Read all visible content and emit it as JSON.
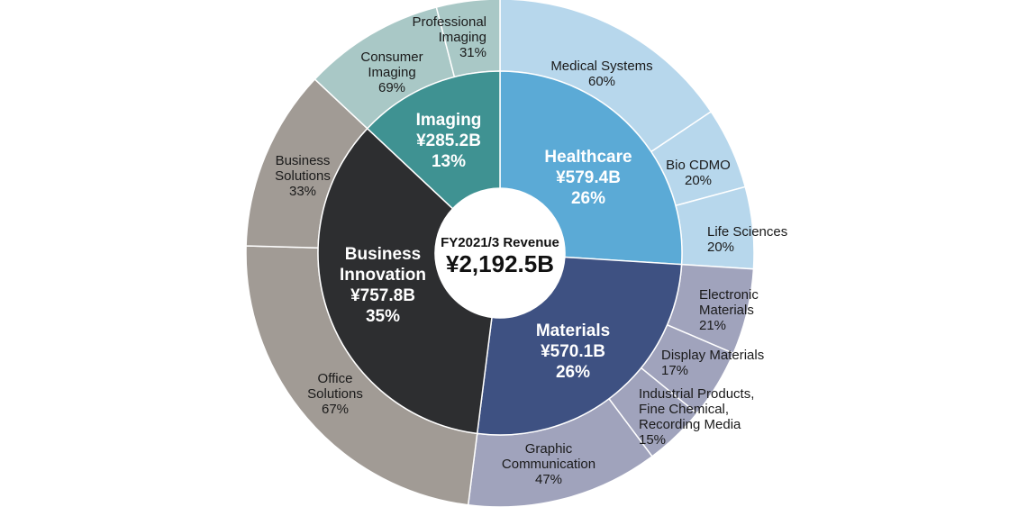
{
  "chart_data": {
    "type": "sunburst",
    "center": {
      "title": "FY2021/3 Revenue",
      "value": "¥2,192.5B"
    },
    "segments": [
      {
        "name": "Healthcare",
        "value_label": "¥579.4B",
        "share": 26,
        "share_label": "26%",
        "color": "#5BAAD6",
        "outer_color": "#B7D7EC",
        "children": [
          {
            "name": "Medical Systems",
            "share": 60,
            "share_label": "60%"
          },
          {
            "name": "Bio CDMO",
            "share": 20,
            "share_label": "20%"
          },
          {
            "name": "Life Sciences",
            "share": 20,
            "share_label": "20%"
          }
        ]
      },
      {
        "name": "Materials",
        "value_label": "¥570.1B",
        "share": 26,
        "share_label": "26%",
        "color": "#3E5182",
        "outer_color": "#A0A3BC",
        "children": [
          {
            "name": "Electronic Materials",
            "share": 21,
            "share_label": "21%"
          },
          {
            "name": "Display Materials",
            "share": 17,
            "share_label": "17%"
          },
          {
            "name": "Industrial Products, Fine Chemical, Recording Media",
            "share": 15,
            "share_label": "15%"
          },
          {
            "name": "Graphic Communication",
            "share": 47,
            "share_label": "47%"
          }
        ]
      },
      {
        "name": "Business Innovation",
        "value_label": "¥757.8B",
        "share": 35,
        "share_label": "35%",
        "color": "#2D2E30",
        "outer_color": "#A19B95",
        "children": [
          {
            "name": "Office Solutions",
            "share": 67,
            "share_label": "67%"
          },
          {
            "name": "Business Solutions",
            "share": 33,
            "share_label": "33%"
          }
        ]
      },
      {
        "name": "Imaging",
        "value_label": "¥285.2B",
        "share": 13,
        "share_label": "13%",
        "color": "#3F9292",
        "outer_color": "#A9C8C6",
        "children": [
          {
            "name": "Consumer Imaging",
            "share": 69,
            "share_label": "69%"
          },
          {
            "name": "Professional Imaging",
            "share": 31,
            "share_label": "31%"
          }
        ]
      }
    ]
  }
}
